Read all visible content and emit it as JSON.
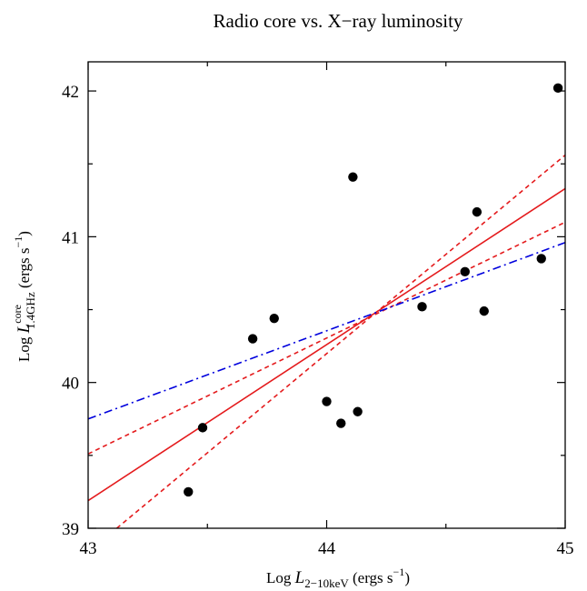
{
  "chart_data": {
    "type": "scatter",
    "title": "Radio core vs. X−ray luminosity",
    "xlabel": {
      "prefix": "Log ",
      "symbol": "L",
      "subscript": "2−10keV",
      "units": " (ergs s",
      "units_sup": "−1",
      "units_close": ")"
    },
    "ylabel": {
      "prefix": "Log ",
      "symbol": "L",
      "superscript": "core",
      "subscript": "1.4GHz",
      "units": " (ergs s",
      "units_sup": "−1",
      "units_close": ")"
    },
    "xlim": [
      43,
      45
    ],
    "ylim": [
      39,
      42.2
    ],
    "xticks": [
      43,
      44,
      45
    ],
    "yticks": [
      39,
      40,
      41,
      42
    ],
    "grid": false,
    "points": [
      {
        "x": 43.42,
        "y": 39.25
      },
      {
        "x": 43.48,
        "y": 39.69
      },
      {
        "x": 43.69,
        "y": 40.3
      },
      {
        "x": 43.78,
        "y": 40.44
      },
      {
        "x": 44.0,
        "y": 39.87
      },
      {
        "x": 44.06,
        "y": 39.72
      },
      {
        "x": 44.11,
        "y": 41.41
      },
      {
        "x": 44.13,
        "y": 39.8
      },
      {
        "x": 44.4,
        "y": 40.52
      },
      {
        "x": 44.58,
        "y": 40.76
      },
      {
        "x": 44.63,
        "y": 41.17
      },
      {
        "x": 44.66,
        "y": 40.49
      },
      {
        "x": 44.9,
        "y": 40.85
      },
      {
        "x": 44.97,
        "y": 42.02
      }
    ],
    "lines": [
      {
        "style": "solid",
        "color": "#e41a1c",
        "x": [
          43,
          45
        ],
        "y": [
          39.19,
          41.33
        ]
      },
      {
        "style": "dashed",
        "color": "#e41a1c",
        "x": [
          43,
          45
        ],
        "y": [
          39.51,
          41.1
        ]
      },
      {
        "style": "dashed",
        "color": "#e41a1c",
        "x": [
          43.12,
          45
        ],
        "y": [
          39.0,
          41.56
        ]
      },
      {
        "style": "dashdot",
        "color": "#0000dd",
        "x": [
          43,
          45
        ],
        "y": [
          39.75,
          40.96
        ]
      }
    ]
  }
}
